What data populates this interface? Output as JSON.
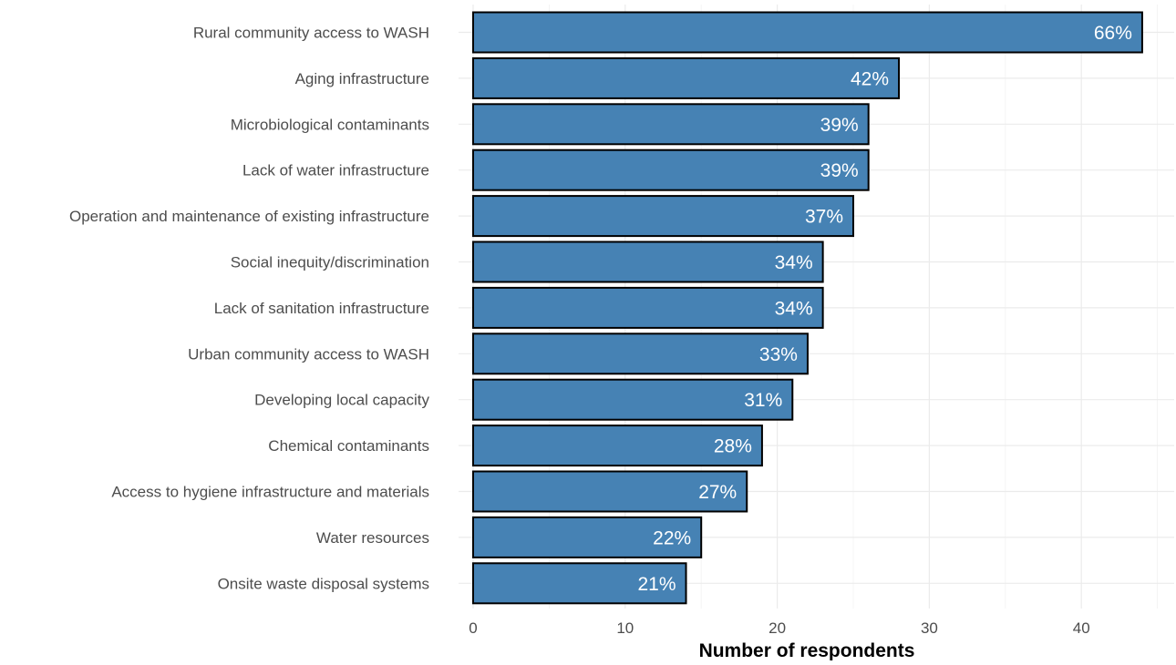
{
  "chart_data": {
    "type": "bar",
    "orientation": "horizontal",
    "xlabel": "Number of respondents",
    "ylabel": "",
    "xlim": [
      0,
      46
    ],
    "x_ticks": [
      0,
      10,
      20,
      30,
      40
    ],
    "grid": true,
    "colors": {
      "bar_fill": "#4682b4",
      "bar_outline": "#000000",
      "bar_label": "#ffffff",
      "grid": "#ebebeb"
    },
    "categories": [
      "Rural community access to WASH",
      "Aging infrastructure",
      "Microbiological contaminants",
      "Lack of water infrastructure",
      "Operation and maintenance of existing infrastructure",
      "Social inequity/discrimination",
      "Lack of sanitation infrastructure",
      "Urban community access to WASH",
      "Developing local capacity",
      "Chemical contaminants",
      "Access to hygiene infrastructure and materials",
      "Water resources",
      "Onsite waste disposal systems"
    ],
    "values": [
      44,
      28,
      26,
      26,
      25,
      23,
      23,
      22,
      21,
      19,
      18,
      15,
      14
    ],
    "data_labels": [
      "66%",
      "42%",
      "39%",
      "39%",
      "37%",
      "34%",
      "34%",
      "33%",
      "31%",
      "28%",
      "27%",
      "22%",
      "21%"
    ]
  }
}
